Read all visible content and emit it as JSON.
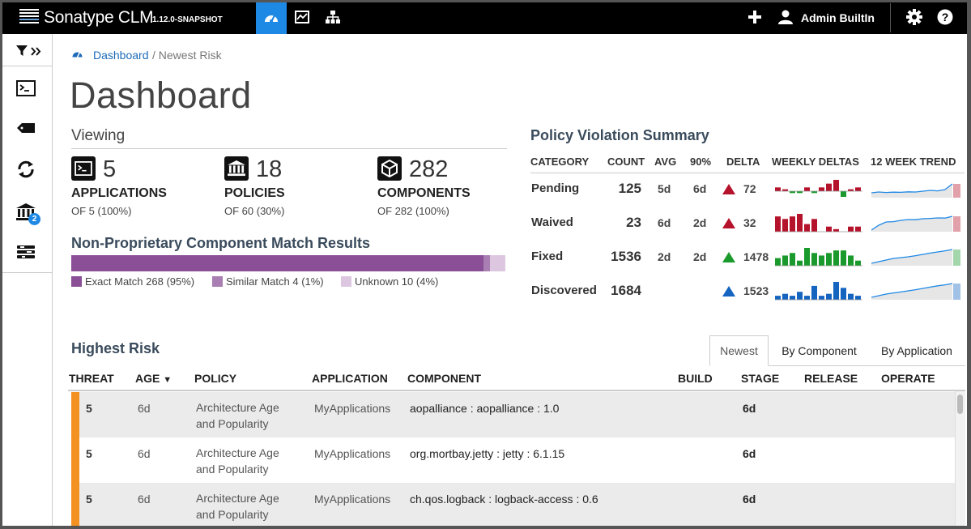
{
  "app": {
    "brand": "Sonatype CLM",
    "version": "1.12.0-SNAPSHOT",
    "user": "Admin BuiltIn",
    "accent": "#1e88e5"
  },
  "nav": {
    "icons": [
      "dashboard-icon",
      "reports-icon",
      "organization-icon"
    ],
    "active": "dashboard-icon"
  },
  "toolbar": {
    "icons": [
      "plus-icon",
      "user-icon",
      "gear-icon",
      "help-icon"
    ]
  },
  "sidebar": {
    "icons": [
      "filter-icon",
      "expand-icon",
      "applications-icon",
      "tag-icon",
      "refresh-icon",
      "policies-icon",
      "components-icon"
    ],
    "policies_badge": "2"
  },
  "breadcrumb": {
    "link": "Dashboard",
    "current": "/ Newest Risk"
  },
  "page_title": "Dashboard",
  "viewing": {
    "title": "Viewing",
    "stats": [
      {
        "icon": "applications-icon",
        "num": "5",
        "label": "APPLICATIONS",
        "sub": "OF 5 (100%)"
      },
      {
        "icon": "policies-icon",
        "num": "18",
        "label": "POLICIES",
        "sub": "OF 60 (30%)"
      },
      {
        "icon": "components-icon",
        "num": "282",
        "label": "COMPONENTS",
        "sub": "OF 282 (100%)"
      }
    ]
  },
  "match": {
    "title": "Non-Proprietary Component Match Results",
    "segments": [
      {
        "label": "Exact Match 268 (95%)",
        "fraction": 0.95,
        "color": "#8a4f96"
      },
      {
        "label": "Similar Match 4 (1%)",
        "fraction": 0.014,
        "color": "#a97eb2"
      },
      {
        "label": "Unknown 10 (4%)",
        "fraction": 0.036,
        "color": "#dcc6e0"
      }
    ]
  },
  "violations": {
    "title": "Policy Violation Summary",
    "headers": [
      "CATEGORY",
      "COUNT",
      "AVG",
      "90%",
      "DELTA",
      "WEEKLY DELTAS",
      "12 WEEK TREND"
    ],
    "rows": [
      {
        "category": "Pending",
        "count": "125",
        "avg": "5d",
        "p90": "6d",
        "delta": "72",
        "color": "#b5122b",
        "weekly": [
          2,
          1,
          -1,
          -1,
          2,
          -1,
          2,
          4,
          6,
          -3,
          1,
          2
        ],
        "trend": [
          0.3,
          0.35,
          0.32,
          0.34,
          0.33,
          0.36,
          0.35,
          0.4,
          0.45,
          0.42,
          0.5,
          0.85
        ]
      },
      {
        "category": "Waived",
        "count": "23",
        "avg": "6d",
        "p90": "2d",
        "delta": "32",
        "color": "#b5122b",
        "weekly": [
          6,
          5,
          6,
          7,
          3,
          5,
          0,
          2,
          1,
          0,
          2,
          2
        ],
        "trend": [
          0.1,
          0.4,
          0.6,
          0.62,
          0.7,
          0.75,
          0.74,
          0.8,
          0.82,
          0.85,
          0.84,
          0.95
        ]
      },
      {
        "category": "Fixed",
        "count": "1536",
        "avg": "2d",
        "p90": "2d",
        "delta": "1478",
        "color": "#1a9a2c",
        "weekly": [
          3,
          4,
          5,
          2,
          7,
          5,
          4,
          5,
          6,
          6,
          4,
          2
        ],
        "trend": [
          0.15,
          0.25,
          0.35,
          0.45,
          0.5,
          0.55,
          0.62,
          0.7,
          0.78,
          0.85,
          0.92,
          1.0
        ]
      },
      {
        "category": "Discovered",
        "count": "1684",
        "avg": "",
        "p90": "",
        "delta": "1523",
        "color": "#1565c0",
        "weekly": [
          2,
          3,
          2,
          4,
          2,
          7,
          2,
          3,
          9,
          6,
          3,
          2
        ],
        "trend": [
          0.15,
          0.25,
          0.35,
          0.42,
          0.48,
          0.55,
          0.62,
          0.7,
          0.78,
          0.86,
          0.92,
          1.0
        ]
      }
    ]
  },
  "risk": {
    "title": "Highest Risk",
    "tabs": [
      "Newest",
      "By Component",
      "By Application"
    ],
    "active_tab": "Newest",
    "columns": [
      "THREAT",
      "AGE",
      "POLICY",
      "APPLICATION",
      "COMPONENT",
      "BUILD",
      "STAGE",
      "RELEASE",
      "OPERATE"
    ],
    "rows": [
      {
        "threat": "5",
        "age": "6d",
        "policy_1": "Architecture Age",
        "policy_2": "and Popularity",
        "application": "MyApplications",
        "component": "aopalliance : aopalliance : 1.0",
        "stage": "6d"
      },
      {
        "threat": "5",
        "age": "6d",
        "policy_1": "Architecture Age",
        "policy_2": "and Popularity",
        "application": "MyApplications",
        "component": "org.mortbay.jetty : jetty : 6.1.15",
        "stage": "6d"
      },
      {
        "threat": "5",
        "age": "6d",
        "policy_1": "Architecture Age",
        "policy_2": "and Popularity",
        "application": "MyApplications",
        "component": "ch.qos.logback : logback-access : 0.6",
        "stage": "6d"
      }
    ]
  }
}
